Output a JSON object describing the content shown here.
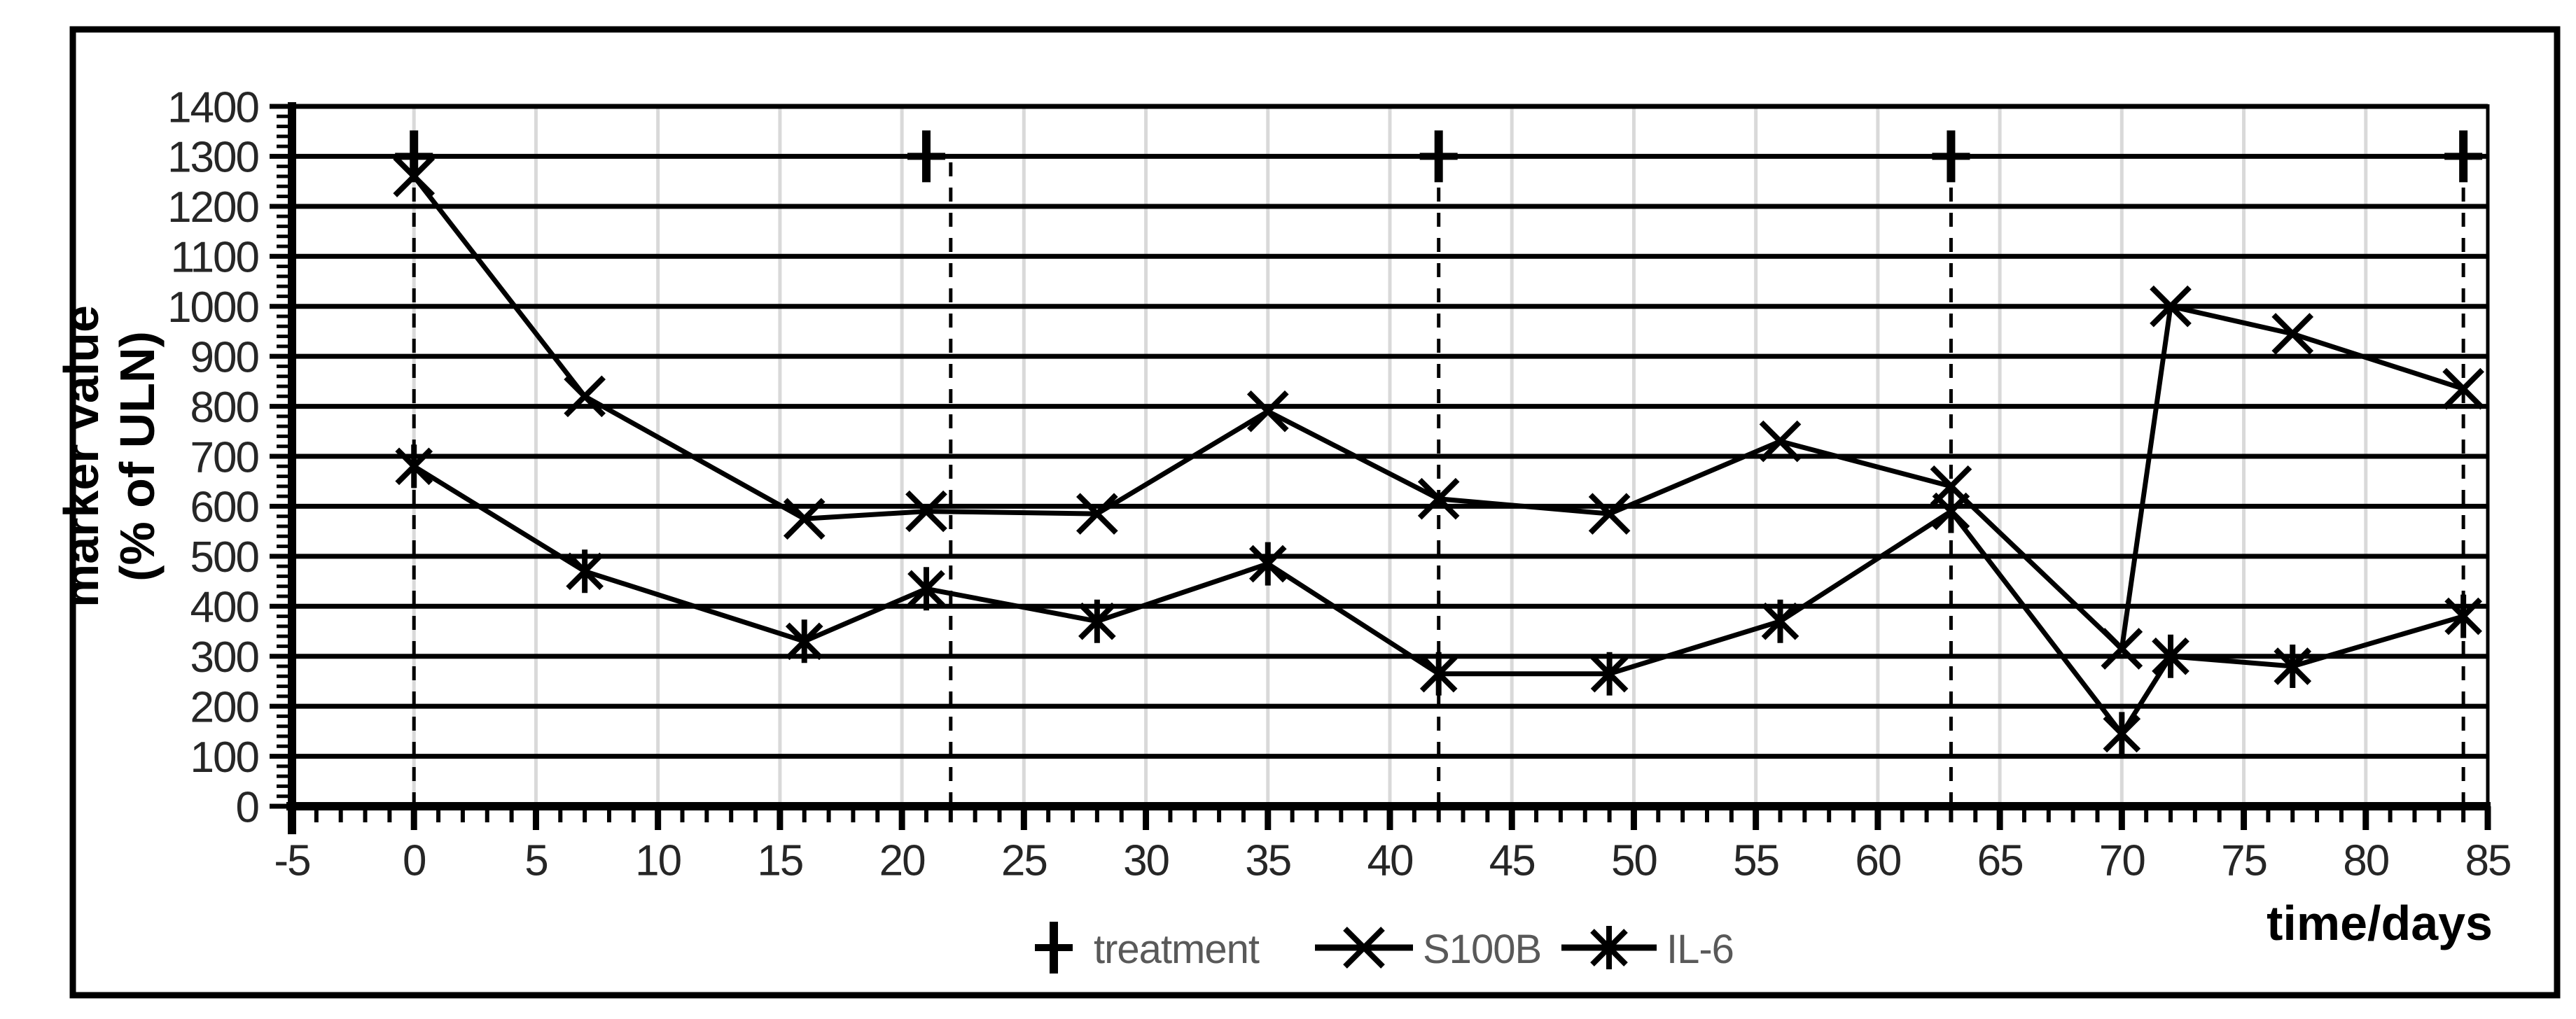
{
  "figure": {
    "background": "#ffffff",
    "outer_border_color": "#000000"
  },
  "colors": {
    "series_line": "#000000",
    "horizontal_grid": "#000000",
    "vertical_grid": "#d9d9d9",
    "axis_line": "#000000",
    "tick_label": "#262626",
    "axis_title": "#000000",
    "legend_text": "#595959",
    "dashed_line": "#000000"
  },
  "chart_data": {
    "type": "line",
    "title": "",
    "xlabel": "time/days",
    "ylabel_lines": [
      "marker value",
      "(% of ULN)"
    ],
    "xlim": [
      -5,
      85
    ],
    "ylim": [
      0,
      1400
    ],
    "x_major_step": 5,
    "x_minor_step": 1,
    "y_major_step": 100,
    "y_minor_step": 20,
    "grid": {
      "horizontal": true,
      "vertical": true
    },
    "x_ticks": [
      -5,
      0,
      5,
      10,
      15,
      20,
      25,
      30,
      35,
      40,
      45,
      50,
      55,
      60,
      65,
      70,
      75,
      80,
      85
    ],
    "x_tick_labels": [
      "-5",
      "0",
      "5",
      "10",
      "15",
      "20",
      "25",
      "30",
      "35",
      "40",
      "45",
      "50",
      "55",
      "60",
      "65",
      "70",
      "75",
      "80",
      "85"
    ],
    "y_ticks": [
      0,
      100,
      200,
      300,
      400,
      500,
      600,
      700,
      800,
      900,
      1000,
      1100,
      1200,
      1300,
      1400
    ],
    "y_tick_labels": [
      "0",
      "100",
      "200",
      "300",
      "400",
      "500",
      "600",
      "700",
      "800",
      "900",
      "1000",
      "1100",
      "1200",
      "1300",
      "1400"
    ],
    "dashed_vlines": {
      "x": [
        0,
        22,
        42,
        63,
        84
      ],
      "y_bottom": 0,
      "y_top": 1300
    },
    "series": [
      {
        "name": "treatment",
        "marker": "plus",
        "line": false,
        "x": [
          0,
          21,
          42,
          63,
          84
        ],
        "y": [
          1300,
          1300,
          1300,
          1300,
          1300
        ]
      },
      {
        "name": "S100B",
        "marker": "x",
        "line": true,
        "x": [
          0,
          7,
          16,
          21,
          28,
          35,
          42,
          49,
          56,
          63,
          70,
          72,
          77,
          84
        ],
        "y": [
          1260,
          820,
          575,
          590,
          585,
          790,
          615,
          585,
          730,
          640,
          315,
          1000,
          945,
          835
        ]
      },
      {
        "name": "IL-6",
        "marker": "asterisk",
        "line": true,
        "x": [
          0,
          7,
          16,
          21,
          28,
          35,
          42,
          49,
          56,
          63,
          70,
          72,
          77,
          84
        ],
        "y": [
          680,
          470,
          330,
          435,
          370,
          485,
          265,
          265,
          370,
          590,
          145,
          300,
          280,
          380
        ]
      }
    ],
    "legend": {
      "position": "bottom-center",
      "entries": [
        {
          "label": "treatment",
          "marker": "plus",
          "show_line": false
        },
        {
          "label": "S100B",
          "marker": "x",
          "show_line": true
        },
        {
          "label": "IL-6",
          "marker": "asterisk",
          "show_line": true
        }
      ]
    }
  }
}
